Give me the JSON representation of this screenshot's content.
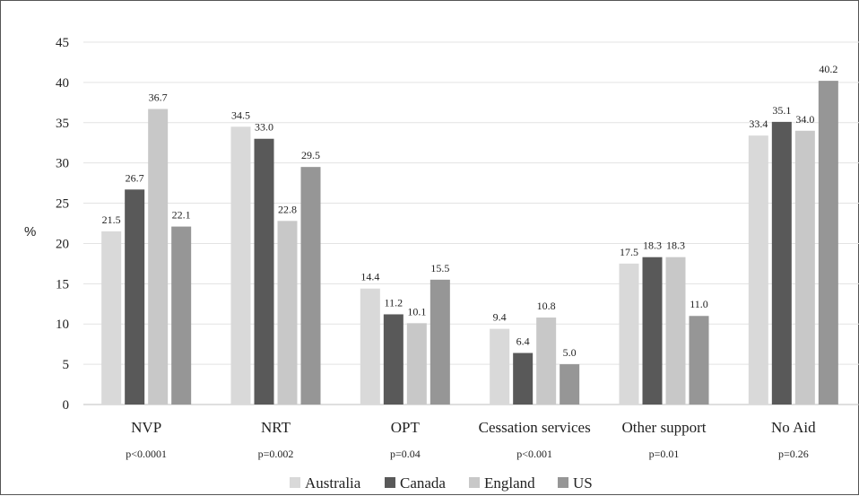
{
  "chart_data": {
    "type": "bar",
    "title": "",
    "xlabel": "",
    "ylabel": "%",
    "ylim": [
      0,
      45
    ],
    "yticks": [
      0,
      5,
      10,
      15,
      20,
      25,
      30,
      35,
      40,
      45
    ],
    "grid": true,
    "legend_position": "bottom",
    "categories": [
      "NVP",
      "NRT",
      "OPT",
      "Cessation services",
      "Other support",
      "No Aid"
    ],
    "p_values": [
      "p<0.0001",
      "p=0.002",
      "p=0.04",
      "p<0.001",
      "p=0.01",
      "p=0.26"
    ],
    "series": [
      {
        "name": "Australia",
        "color": "#d9d9d9",
        "values": [
          21.5,
          34.5,
          14.4,
          9.4,
          17.5,
          33.4
        ],
        "labels": [
          "21.5",
          "34.5",
          "14.4",
          "9.4",
          "17.5",
          "33.4"
        ]
      },
      {
        "name": "Canada",
        "color": "#595959",
        "values": [
          26.7,
          33.0,
          11.2,
          6.4,
          18.3,
          35.1
        ],
        "labels": [
          "26.7",
          "33.0",
          "11.2",
          "6.4",
          "18.3",
          "35.1"
        ]
      },
      {
        "name": "England",
        "color": "#c8c8c8",
        "values": [
          36.7,
          22.8,
          10.1,
          10.8,
          18.3,
          34.0
        ],
        "labels": [
          "36.7",
          "22.8",
          "10.1",
          "10.8",
          "18.3",
          "34.0"
        ]
      },
      {
        "name": "US",
        "color": "#969696",
        "values": [
          22.1,
          29.5,
          15.5,
          5.0,
          11.0,
          40.2
        ],
        "labels": [
          "22.1",
          "29.5",
          "15.5",
          "5.0",
          "11.0",
          "40.2"
        ]
      }
    ]
  }
}
